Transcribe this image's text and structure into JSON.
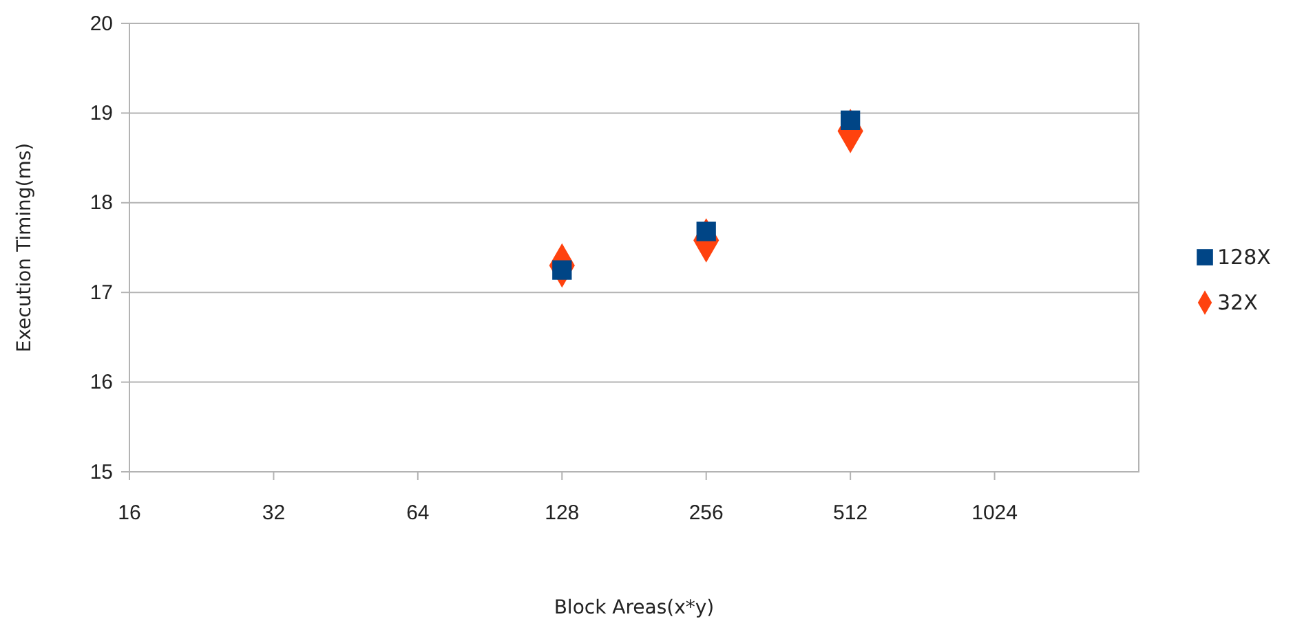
{
  "chart_data": {
    "type": "scatter",
    "xlabel": "Block Areas(x*y)",
    "ylabel": "Execution Timing(ms)",
    "log": "x",
    "xlim": [
      16,
      2048
    ],
    "xticks": [
      16,
      32,
      64,
      128,
      256,
      512,
      1024
    ],
    "ylim": [
      15,
      20
    ],
    "yticks": [
      15,
      16,
      17,
      18,
      19,
      20
    ],
    "grid": "y",
    "legend": "right",
    "series": [
      {
        "name": "128X",
        "color": "#004586",
        "marker": "square",
        "x": [
          128,
          256,
          512
        ],
        "values": [
          17.25,
          17.68,
          18.92
        ]
      },
      {
        "name": "32X",
        "color": "#ff420e",
        "marker": "diamond",
        "x": [
          128,
          256,
          512
        ],
        "values": [
          17.3,
          17.58,
          18.8
        ]
      }
    ]
  }
}
